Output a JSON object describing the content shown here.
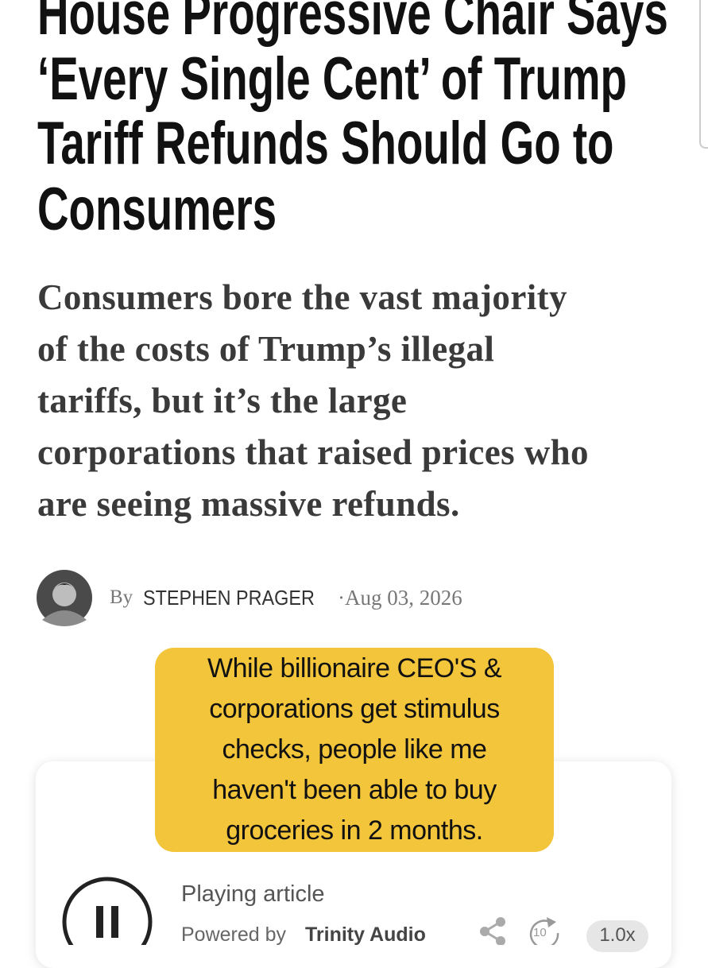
{
  "article": {
    "title_lines": [
      "House Progressive Chair Says",
      "‘Every Single Cent’ of Trump",
      "Tariff Refunds Should Go to",
      "Consumers"
    ],
    "subtitle_lines": [
      "Consumers bore the vast majority",
      "of the costs of Trump’s illegal",
      "tariffs, but it’s the large",
      "corporations that raised prices who",
      "are seeing massive refunds."
    ],
    "byline": {
      "prefix": "By",
      "author": "STEPHEN PRAGER",
      "date": "·Aug 03, 2026"
    }
  },
  "caption": {
    "lines": [
      "While billionaire CEO'S &",
      "corporations get stimulus",
      "checks, people like me",
      "haven't been able to buy",
      "groceries in 2 months."
    ]
  },
  "audio_player": {
    "status": "Playing article",
    "powered_by": "Powered by",
    "provider": "Trinity Audio",
    "skip": "10",
    "speed": "1.0x"
  }
}
